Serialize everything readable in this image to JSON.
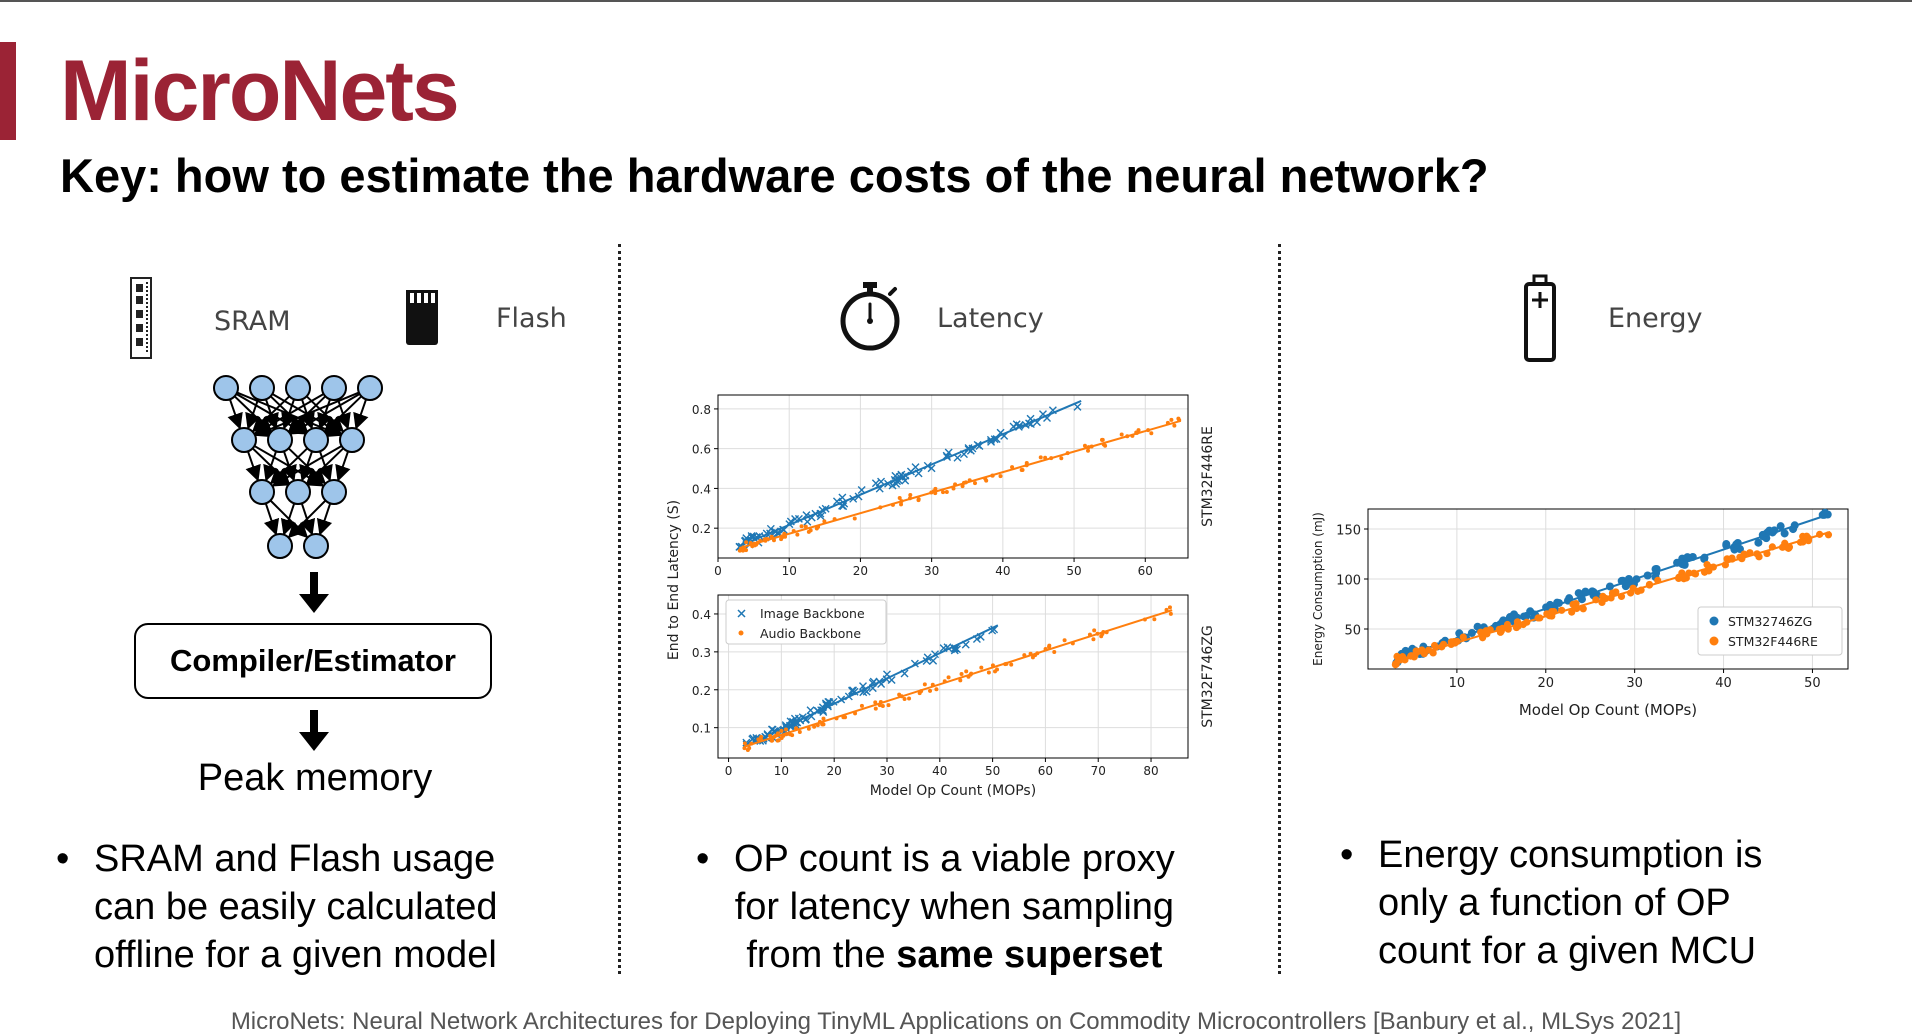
{
  "slide": {
    "title": "MicroNets",
    "subtitle": "Key: how to estimate the hardware costs of the neural network?",
    "citation": "MicroNets: Neural Network Architectures for Deploying TinyML Applications on Commodity Microcontrollers [Banbury et al., MLSys 2021]",
    "accent_color": "#9b2335"
  },
  "memory": {
    "sram_label": "SRAM",
    "flash_label": "Flash",
    "sram_icon": "memory-module-icon",
    "flash_icon": "sd-card-icon",
    "compiler_label": "Compiler/Estimator",
    "peak_label": "Peak memory",
    "bullet": "•",
    "bullet_lines": [
      "SRAM and Flash usage",
      "can be easily calculated",
      "offline for a given model"
    ]
  },
  "latency": {
    "label": "Latency",
    "icon": "stopwatch-icon",
    "bullet": "•",
    "bullet_lines": [
      "OP count is a viable proxy",
      "for latency when sampling"
    ],
    "bullet_last_prefix": "from the ",
    "bullet_last_bold": "same superset"
  },
  "energy": {
    "label": "Energy",
    "icon": "battery-icon",
    "bullet": "•",
    "bullet_lines": [
      "Energy consumption is",
      "only a function of OP",
      "count for a given MCU"
    ]
  },
  "chart_data": [
    {
      "type": "scatter",
      "panel": "latency-top",
      "device_label": "STM32F446RE",
      "xlim": [
        0,
        66
      ],
      "ylim": [
        0.05,
        0.87
      ],
      "xticks": [
        0,
        10,
        20,
        30,
        40,
        50,
        60
      ],
      "yticks": [
        0.2,
        0.4,
        0.6,
        0.8
      ],
      "ytick_labels": [
        "0.2",
        "0.4",
        "0.6",
        "0.8"
      ],
      "grid": true,
      "series": [
        {
          "name": "Image Backbone",
          "marker": "x",
          "color": "#1f77b4",
          "fit": [
            [
              3,
              0.11
            ],
            [
              51,
              0.84
            ]
          ]
        },
        {
          "name": "Audio Backbone",
          "marker": "dot",
          "color": "#ff7f0e",
          "fit": [
            [
              3,
              0.1
            ],
            [
              65,
              0.74
            ]
          ]
        }
      ]
    },
    {
      "type": "scatter",
      "panel": "latency-bottom",
      "device_label": "STM32F746ZG",
      "xlabel": "Model Op Count (MOPs)",
      "ylabel": "End to End Latency (S)",
      "xlim": [
        -2,
        87
      ],
      "ylim": [
        0.02,
        0.45
      ],
      "xticks": [
        0,
        10,
        20,
        30,
        40,
        50,
        60,
        70,
        80
      ],
      "yticks": [
        0.1,
        0.2,
        0.3,
        0.4
      ],
      "ytick_labels": [
        "0.1",
        "0.2",
        "0.3",
        "0.4"
      ],
      "grid": true,
      "legend": "top-left",
      "series": [
        {
          "name": "Image Backbone",
          "marker": "x",
          "color": "#1f77b4",
          "fit": [
            [
              3,
              0.05
            ],
            [
              51,
              0.37
            ]
          ]
        },
        {
          "name": "Audio Backbone",
          "marker": "dot",
          "color": "#ff7f0e",
          "fit": [
            [
              3,
              0.05
            ],
            [
              84,
              0.41
            ]
          ]
        }
      ]
    },
    {
      "type": "scatter",
      "panel": "energy",
      "xlabel": "Model Op Count (MOPs)",
      "ylabel": "Energy Consumption (mJ)",
      "xlim": [
        0,
        54
      ],
      "ylim": [
        10,
        170
      ],
      "xticks": [
        10,
        20,
        30,
        40,
        50
      ],
      "yticks": [
        50,
        100,
        150
      ],
      "ytick_labels": [
        "50",
        "100",
        "150"
      ],
      "grid": true,
      "legend": "right",
      "series": [
        {
          "name": "STM32746ZG",
          "marker": "dot",
          "color": "#1f77b4",
          "fit": [
            [
              3,
              20
            ],
            [
              52,
              165
            ]
          ]
        },
        {
          "name": "STM32F446RE",
          "marker": "dot",
          "color": "#ff7f0e",
          "fit": [
            [
              3,
              18
            ],
            [
              52,
              147
            ]
          ]
        }
      ]
    }
  ]
}
